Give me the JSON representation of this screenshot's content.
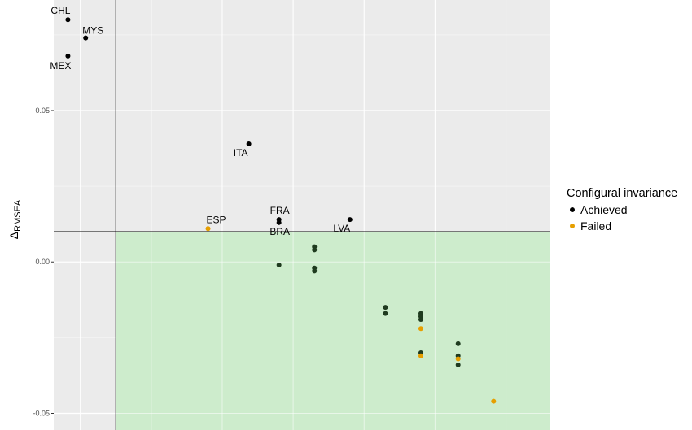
{
  "chart_data": {
    "type": "scatter",
    "ylabel_delta": "Δ",
    "ylabel_sub": "RMSEA",
    "xlabel": "",
    "x_tick_labels": [],
    "y_ticks": [
      -0.05,
      0.0,
      0.05
    ],
    "y_tick_labels": [
      "-0.05",
      "0.00",
      "0.05"
    ],
    "ylim": [
      -0.0555,
      0.0865
    ],
    "xlim": [
      -0.0135,
      0.0145
    ],
    "x_vertical_gridlines": [
      -0.012,
      -0.008,
      -0.004,
      0.0,
      0.004,
      0.008,
      0.012
    ],
    "reference_lines": {
      "vertical_x": -0.01,
      "horizontal_y": 0.01
    },
    "shaded_region": {
      "x_min": -0.01,
      "y_max": 0.01,
      "color": "#cdeccc"
    },
    "panel_background": "#ebebeb",
    "grid": true,
    "legend": {
      "title": "Configural invariance",
      "placement": "right",
      "entries": [
        {
          "name": "Achieved",
          "color": "#000000"
        },
        {
          "name": "Failed",
          "color": "#e69f00"
        }
      ]
    },
    "series": [
      {
        "name": "Achieved",
        "color": "#000000",
        "points": [
          {
            "x": -0.0127,
            "y": 0.08,
            "label": "CHL"
          },
          {
            "x": -0.0117,
            "y": 0.074,
            "label": "MYS"
          },
          {
            "x": -0.0127,
            "y": 0.068,
            "label": "MEX"
          },
          {
            "x": -0.0025,
            "y": 0.039,
            "label": "ITA"
          },
          {
            "x": -0.0008,
            "y": 0.014,
            "label": "FRA"
          },
          {
            "x": -0.0008,
            "y": 0.013,
            "label": "BRA"
          },
          {
            "x": 0.0032,
            "y": 0.014,
            "label": "LVA"
          },
          {
            "x": -0.0008,
            "y": -0.001,
            "label": ""
          },
          {
            "x": 0.0012,
            "y": 0.005,
            "label": ""
          },
          {
            "x": 0.0012,
            "y": 0.004,
            "label": ""
          },
          {
            "x": 0.0012,
            "y": -0.002,
            "label": ""
          },
          {
            "x": 0.0012,
            "y": -0.003,
            "label": ""
          },
          {
            "x": 0.0052,
            "y": -0.015,
            "label": ""
          },
          {
            "x": 0.0052,
            "y": -0.017,
            "label": ""
          },
          {
            "x": 0.0072,
            "y": -0.017,
            "label": ""
          },
          {
            "x": 0.0072,
            "y": -0.018,
            "label": ""
          },
          {
            "x": 0.0072,
            "y": -0.019,
            "label": ""
          },
          {
            "x": 0.0072,
            "y": -0.03,
            "label": ""
          },
          {
            "x": 0.0093,
            "y": -0.027,
            "label": ""
          },
          {
            "x": 0.0093,
            "y": -0.031,
            "label": ""
          },
          {
            "x": 0.0093,
            "y": -0.034,
            "label": ""
          }
        ]
      },
      {
        "name": "Failed",
        "color": "#e69f00",
        "points": [
          {
            "x": -0.0048,
            "y": 0.011,
            "label": "ESP"
          },
          {
            "x": 0.0072,
            "y": -0.022,
            "label": ""
          },
          {
            "x": 0.0072,
            "y": -0.031,
            "label": ""
          },
          {
            "x": 0.0093,
            "y": -0.032,
            "label": ""
          },
          {
            "x": 0.0113,
            "y": -0.046,
            "label": ""
          }
        ]
      }
    ]
  }
}
